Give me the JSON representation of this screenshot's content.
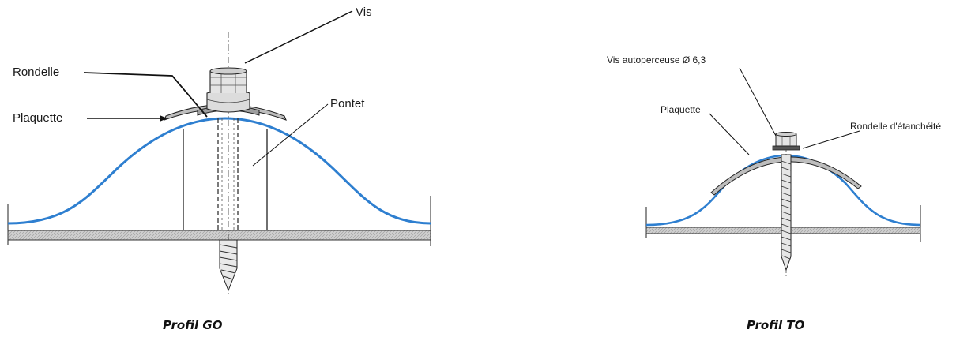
{
  "figure_go": {
    "labels": {
      "vis": "Vis",
      "rondelle": "Rondelle",
      "plaquette": "Plaquette",
      "pontet": "Pontet"
    },
    "caption": "Profil GO"
  },
  "figure_to": {
    "labels": {
      "vis": "Vis autoperceuse Ø 6,3",
      "plaquette": "Plaquette",
      "rondelle": "Rondelle d'étanchéité"
    },
    "caption": "Profil TO"
  },
  "colors": {
    "profile": "#2e7fd0",
    "line": "#1a1a1a",
    "plate_fill": "#c8c8c8"
  }
}
